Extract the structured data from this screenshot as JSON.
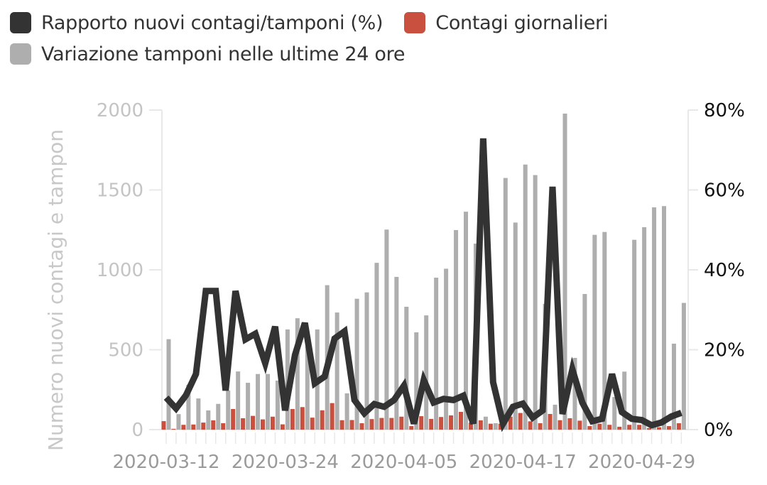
{
  "legend": {
    "items": [
      {
        "label": "Rapporto nuovi contagi/tamponi (%)",
        "color": "#333333",
        "icon": "square-swatch"
      },
      {
        "label": "Contagi giornalieri",
        "color": "#c9503e",
        "icon": "square-swatch"
      },
      {
        "label": "Variazione tamponi nelle ultime 24 ore",
        "color": "#aeaeae",
        "icon": "square-swatch"
      }
    ]
  },
  "axes": {
    "left_title": "Numero nuovi contagi e tampon",
    "left_ticks": [
      "0",
      "500",
      "1000",
      "1500",
      "2000"
    ],
    "right_ticks": [
      "0%",
      "20%",
      "40%",
      "60%",
      "80%"
    ],
    "x_ticks": [
      "2020-03-12",
      "2020-03-24",
      "2020-04-05",
      "2020-04-17",
      "2020-04-29"
    ]
  },
  "colors": {
    "line": "#333333",
    "contagi": "#c9503e",
    "tamponi": "#aeaeae",
    "axis": "#e8e8e8"
  },
  "chart_data": {
    "type": "bar+line",
    "title": "",
    "xlabel": "",
    "ylabel": "Numero nuovi contagi e tampon",
    "y2label": "Rapporto nuovi contagi/tamponi (%)",
    "ylim": [
      0,
      2000
    ],
    "y2lim": [
      0,
      80
    ],
    "grid": false,
    "legend_position": "top-left",
    "x_start": "2020-03-12",
    "x_end": "2020-05-03",
    "x_tick_labels": [
      "2020-03-12",
      "2020-03-24",
      "2020-04-05",
      "2020-04-17",
      "2020-04-29"
    ],
    "x": [
      "03-12",
      "03-13",
      "03-14",
      "03-15",
      "03-16",
      "03-17",
      "03-18",
      "03-19",
      "03-20",
      "03-21",
      "03-22",
      "03-23",
      "03-24",
      "03-25",
      "03-26",
      "03-27",
      "03-28",
      "03-29",
      "03-30",
      "03-31",
      "04-01",
      "04-02",
      "04-03",
      "04-04",
      "04-05",
      "04-06",
      "04-07",
      "04-08",
      "04-09",
      "04-10",
      "04-11",
      "04-12",
      "04-13",
      "04-14",
      "04-15",
      "04-16",
      "04-17",
      "04-18",
      "04-19",
      "04-20",
      "04-21",
      "04-22",
      "04-23",
      "04-24",
      "04-25",
      "04-26",
      "04-27",
      "04-28",
      "04-29",
      "04-30",
      "05-01",
      "05-02",
      "05-03"
    ],
    "series": [
      {
        "name": "Variazione tamponi nelle ultime 24 ore",
        "type": "bar",
        "axis": "left",
        "color": "#aeaeae",
        "values": [
          566,
          97,
          281,
          195,
          120,
          161,
          245,
          364,
          293,
          348,
          348,
          307,
          627,
          697,
          520,
          627,
          904,
          733,
          227,
          819,
          859,
          1044,
          1252,
          956,
          769,
          609,
          715,
          951,
          1007,
          1249,
          1364,
          1164,
          81,
          40,
          1575,
          1296,
          1659,
          1593,
          787,
          156,
          1978,
          449,
          849,
          1219,
          1237,
          204,
          363,
          1188,
          1267,
          1391,
          1399,
          538,
          793
        ]
      },
      {
        "name": "Contagi giornalieri",
        "type": "bar",
        "axis": "left",
        "color": "#c9503e",
        "values": [
          53,
          5,
          30,
          32,
          44,
          58,
          40,
          129,
          71,
          86,
          64,
          81,
          33,
          129,
          141,
          75,
          121,
          166,
          59,
          60,
          40,
          66,
          73,
          73,
          81,
          22,
          84,
          67,
          79,
          89,
          111,
          44,
          58,
          37,
          37,
          81,
          104,
          52,
          40,
          98,
          59,
          71,
          56,
          22,
          37,
          30,
          18,
          30,
          30,
          10,
          15,
          22,
          40
        ]
      },
      {
        "name": "Rapporto nuovi contagi/tamponi (%)",
        "type": "line",
        "axis": "right",
        "color": "#333333",
        "values": [
          8.0,
          5.3,
          8.6,
          13.9,
          34.7,
          34.7,
          9.8,
          34.7,
          22.6,
          24.0,
          16.6,
          25.8,
          4.8,
          18.7,
          26.7,
          11.6,
          13.3,
          22.8,
          24.6,
          7.4,
          4.1,
          6.4,
          5.7,
          7.4,
          11.0,
          1.5,
          12.4,
          6.8,
          7.7,
          7.4,
          8.5,
          1.5,
          72.9,
          11.9,
          1.5,
          5.7,
          6.5,
          3.0,
          4.8,
          60.8,
          3.9,
          15.1,
          6.8,
          2.1,
          2.7,
          13.9,
          4.4,
          2.7,
          2.4,
          1.1,
          1.8,
          3.3,
          4.2
        ]
      }
    ]
  }
}
